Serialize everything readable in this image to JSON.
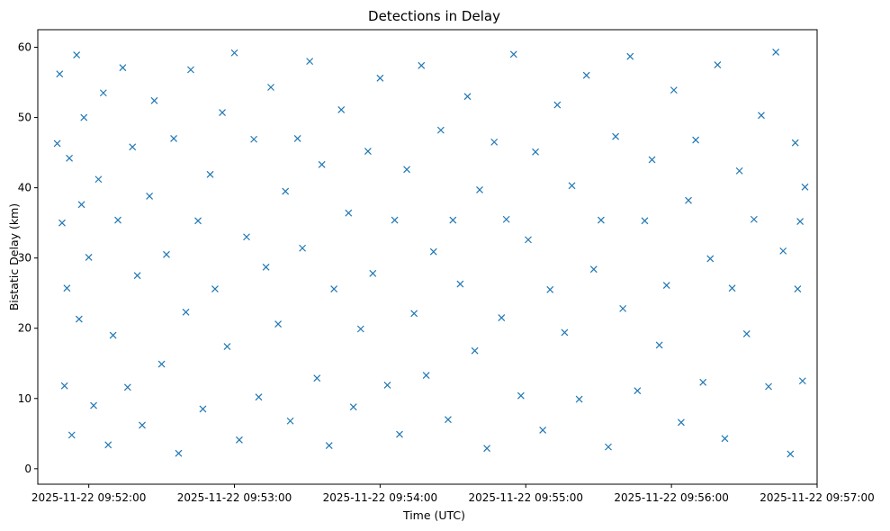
{
  "chart_data": {
    "type": "scatter",
    "title": "Detections in Delay",
    "xlabel": "Time (UTC)",
    "ylabel": "Bistatic Delay (km)",
    "x_ticks": [
      "2025-11-22 09:52:00",
      "2025-11-22 09:53:00",
      "2025-11-22 09:54:00",
      "2025-11-22 09:55:00",
      "2025-11-22 09:56:00",
      "2025-11-22 09:57:00"
    ],
    "y_ticks": [
      "0",
      "10",
      "20",
      "30",
      "40",
      "50",
      "60"
    ],
    "xlim": [
      "2025-11-22 09:51:39",
      "2025-11-22 09:57:00"
    ],
    "ylim": [
      -2.2,
      62.5
    ],
    "marker": "x",
    "grid": false,
    "color": "#1f77b4",
    "series": [
      {
        "points": [
          [
            "09:51:47",
            46.3
          ],
          [
            "09:51:48",
            56.2
          ],
          [
            "09:51:49",
            35.0
          ],
          [
            "09:51:50",
            11.8
          ],
          [
            "09:51:51",
            25.7
          ],
          [
            "09:51:52",
            44.2
          ],
          [
            "09:51:53",
            4.8
          ],
          [
            "09:51:55",
            58.9
          ],
          [
            "09:51:56",
            21.3
          ],
          [
            "09:51:57",
            37.6
          ],
          [
            "09:51:58",
            50.0
          ],
          [
            "09:52:00",
            30.1
          ],
          [
            "09:52:02",
            9.0
          ],
          [
            "09:52:04",
            41.2
          ],
          [
            "09:52:06",
            53.5
          ],
          [
            "09:52:08",
            3.4
          ],
          [
            "09:52:10",
            19.0
          ],
          [
            "09:52:12",
            35.4
          ],
          [
            "09:52:14",
            57.1
          ],
          [
            "09:52:16",
            11.6
          ],
          [
            "09:52:18",
            45.8
          ],
          [
            "09:52:20",
            27.5
          ],
          [
            "09:52:22",
            6.2
          ],
          [
            "09:52:25",
            38.8
          ],
          [
            "09:52:27",
            52.4
          ],
          [
            "09:52:30",
            14.9
          ],
          [
            "09:52:32",
            30.5
          ],
          [
            "09:52:35",
            47.0
          ],
          [
            "09:52:37",
            2.2
          ],
          [
            "09:52:40",
            22.3
          ],
          [
            "09:52:42",
            56.8
          ],
          [
            "09:52:45",
            35.3
          ],
          [
            "09:52:47",
            8.5
          ],
          [
            "09:52:50",
            41.9
          ],
          [
            "09:52:52",
            25.6
          ],
          [
            "09:52:55",
            50.7
          ],
          [
            "09:52:57",
            17.4
          ],
          [
            "09:53:00",
            59.2
          ],
          [
            "09:53:02",
            4.1
          ],
          [
            "09:53:05",
            33.0
          ],
          [
            "09:53:08",
            46.9
          ],
          [
            "09:53:10",
            10.2
          ],
          [
            "09:53:13",
            28.7
          ],
          [
            "09:53:15",
            54.3
          ],
          [
            "09:53:18",
            20.6
          ],
          [
            "09:53:21",
            39.5
          ],
          [
            "09:53:23",
            6.8
          ],
          [
            "09:53:26",
            47.0
          ],
          [
            "09:53:28",
            31.4
          ],
          [
            "09:53:31",
            58.0
          ],
          [
            "09:53:34",
            12.9
          ],
          [
            "09:53:36",
            43.3
          ],
          [
            "09:53:39",
            3.3
          ],
          [
            "09:53:41",
            25.6
          ],
          [
            "09:53:44",
            51.1
          ],
          [
            "09:53:47",
            36.4
          ],
          [
            "09:53:49",
            8.8
          ],
          [
            "09:53:52",
            19.9
          ],
          [
            "09:53:55",
            45.2
          ],
          [
            "09:53:57",
            27.8
          ],
          [
            "09:54:00",
            55.6
          ],
          [
            "09:54:03",
            11.9
          ],
          [
            "09:54:06",
            35.4
          ],
          [
            "09:54:08",
            4.9
          ],
          [
            "09:54:11",
            42.6
          ],
          [
            "09:54:14",
            22.1
          ],
          [
            "09:54:17",
            57.4
          ],
          [
            "09:54:19",
            13.3
          ],
          [
            "09:54:22",
            30.9
          ],
          [
            "09:54:25",
            48.2
          ],
          [
            "09:54:28",
            7.0
          ],
          [
            "09:54:30",
            35.4
          ],
          [
            "09:54:33",
            26.3
          ],
          [
            "09:54:36",
            53.0
          ],
          [
            "09:54:39",
            16.8
          ],
          [
            "09:54:41",
            39.7
          ],
          [
            "09:54:44",
            2.9
          ],
          [
            "09:54:47",
            46.5
          ],
          [
            "09:54:50",
            21.5
          ],
          [
            "09:54:52",
            35.5
          ],
          [
            "09:54:55",
            59.0
          ],
          [
            "09:54:58",
            10.4
          ],
          [
            "09:55:01",
            32.6
          ],
          [
            "09:55:04",
            45.1
          ],
          [
            "09:55:07",
            5.5
          ],
          [
            "09:55:10",
            25.5
          ],
          [
            "09:55:13",
            51.8
          ],
          [
            "09:55:16",
            19.4
          ],
          [
            "09:55:19",
            40.3
          ],
          [
            "09:55:22",
            9.9
          ],
          [
            "09:55:25",
            56.0
          ],
          [
            "09:55:28",
            28.4
          ],
          [
            "09:55:31",
            35.4
          ],
          [
            "09:55:34",
            3.1
          ],
          [
            "09:55:37",
            47.3
          ],
          [
            "09:55:40",
            22.8
          ],
          [
            "09:55:43",
            58.7
          ],
          [
            "09:55:46",
            11.1
          ],
          [
            "09:55:49",
            35.3
          ],
          [
            "09:55:52",
            44.0
          ],
          [
            "09:55:55",
            17.6
          ],
          [
            "09:55:58",
            26.1
          ],
          [
            "09:56:01",
            53.9
          ],
          [
            "09:56:04",
            6.6
          ],
          [
            "09:56:07",
            38.2
          ],
          [
            "09:56:10",
            46.8
          ],
          [
            "09:56:13",
            12.3
          ],
          [
            "09:56:16",
            29.9
          ],
          [
            "09:56:19",
            57.5
          ],
          [
            "09:56:22",
            4.3
          ],
          [
            "09:56:25",
            25.7
          ],
          [
            "09:56:28",
            42.4
          ],
          [
            "09:56:31",
            19.2
          ],
          [
            "09:56:34",
            35.5
          ],
          [
            "09:56:37",
            50.3
          ],
          [
            "09:56:40",
            11.7
          ],
          [
            "09:56:43",
            59.3
          ],
          [
            "09:56:46",
            31.0
          ],
          [
            "09:56:49",
            2.1
          ],
          [
            "09:56:51",
            46.4
          ],
          [
            "09:56:52",
            25.6
          ],
          [
            "09:56:53",
            35.2
          ],
          [
            "09:56:54",
            12.5
          ],
          [
            "09:56:55",
            40.1
          ]
        ]
      }
    ]
  }
}
